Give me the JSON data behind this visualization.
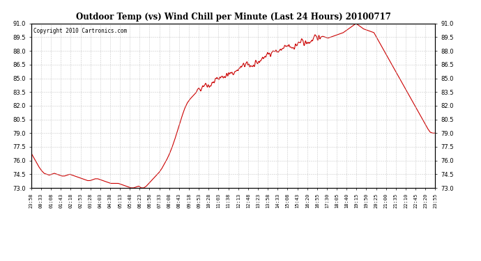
{
  "title": "Outdoor Temp (vs) Wind Chill per Minute (Last 24 Hours) 20100717",
  "copyright": "Copyright 2010 Cartronics.com",
  "line_color": "#cc0000",
  "background_color": "#ffffff",
  "grid_color": "#bbbbbb",
  "ylim": [
    73.0,
    91.0
  ],
  "yticks": [
    73.0,
    74.5,
    76.0,
    77.5,
    79.0,
    80.5,
    82.0,
    83.5,
    85.0,
    86.5,
    88.0,
    89.5,
    91.0
  ],
  "xtick_labels": [
    "23:58",
    "00:33",
    "01:08",
    "01:43",
    "02:18",
    "02:53",
    "03:28",
    "04:03",
    "04:38",
    "05:13",
    "05:48",
    "06:23",
    "06:58",
    "07:33",
    "08:08",
    "08:43",
    "09:18",
    "09:53",
    "10:28",
    "11:03",
    "11:38",
    "12:13",
    "12:48",
    "13:23",
    "13:58",
    "14:33",
    "15:08",
    "15:43",
    "16:20",
    "16:55",
    "17:30",
    "18:05",
    "18:40",
    "19:15",
    "19:50",
    "20:25",
    "21:00",
    "21:35",
    "22:10",
    "22:45",
    "23:20",
    "23:55"
  ],
  "curve_y": [
    76.8,
    76.3,
    75.8,
    75.3,
    74.9,
    74.6,
    74.5,
    74.4,
    74.5,
    74.6,
    74.5,
    74.4,
    74.3,
    74.3,
    74.4,
    74.5,
    74.4,
    74.3,
    74.2,
    74.1,
    74.0,
    73.9,
    73.8,
    73.8,
    73.9,
    74.0,
    74.0,
    73.9,
    73.8,
    73.7,
    73.6,
    73.5,
    73.5,
    73.5,
    73.5,
    73.4,
    73.3,
    73.2,
    73.1,
    73.0,
    73.0,
    73.1,
    73.2,
    73.0,
    73.0,
    73.2,
    73.5,
    73.8,
    74.1,
    74.4,
    74.7,
    75.1,
    75.6,
    76.1,
    76.7,
    77.4,
    78.2,
    79.1,
    80.0,
    80.9,
    81.7,
    82.3,
    82.7,
    83.0,
    83.3,
    83.6,
    83.9,
    84.2,
    84.4,
    84.3,
    84.2,
    84.5,
    84.8,
    85.0,
    85.1,
    85.2,
    85.3,
    85.4,
    85.5,
    85.6,
    85.8,
    86.0,
    86.2,
    86.4,
    86.5,
    86.5,
    86.4,
    86.3,
    86.5,
    86.8,
    87.1,
    87.3,
    87.5,
    87.7,
    87.9,
    88.0,
    87.9,
    88.0,
    88.1,
    88.3,
    88.5,
    88.5,
    88.4,
    88.5,
    88.7,
    88.9,
    89.0,
    88.9,
    88.8,
    89.0,
    89.2,
    89.4,
    89.5,
    89.5,
    89.6,
    89.5,
    89.4,
    89.5,
    89.6,
    89.7,
    89.8,
    89.9,
    90.0,
    90.2,
    90.4,
    90.6,
    90.8,
    91.0,
    90.8,
    90.6,
    90.4,
    90.3,
    90.2,
    90.1,
    90.0,
    89.5,
    89.0,
    88.5,
    88.0,
    87.5,
    87.0,
    86.5,
    86.0,
    85.5,
    85.0,
    84.5,
    84.0,
    83.5,
    83.0,
    82.5,
    82.0,
    81.5,
    81.0,
    80.5,
    80.0,
    79.5,
    79.1,
    79.0,
    79.0
  ]
}
